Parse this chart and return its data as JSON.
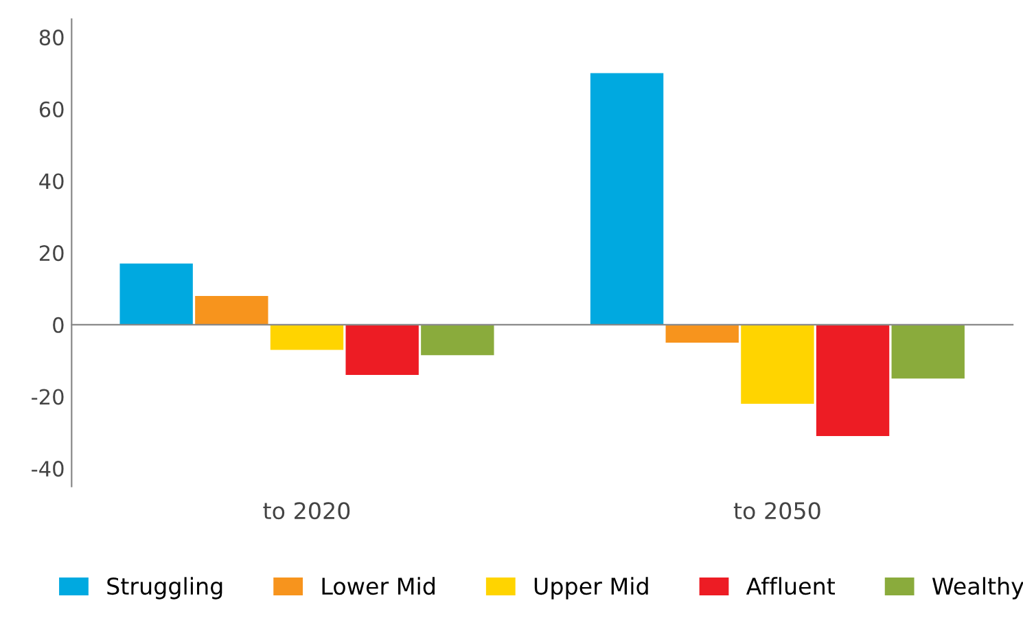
{
  "chart_data": {
    "type": "bar",
    "categories": [
      "to 2020",
      "to 2050"
    ],
    "series": [
      {
        "name": "Struggling",
        "color": "#00a9e0",
        "values": [
          17,
          70
        ]
      },
      {
        "name": "Lower Mid",
        "color": "#f7941d",
        "values": [
          8,
          -5
        ]
      },
      {
        "name": "Upper Mid",
        "color": "#ffd400",
        "values": [
          -7,
          -22
        ]
      },
      {
        "name": "Affluent",
        "color": "#ed1c24",
        "values": [
          -14,
          -31
        ]
      },
      {
        "name": "Wealthy",
        "color": "#8aab3c",
        "values": [
          -8.5,
          -15
        ]
      }
    ],
    "ylim": [
      -45,
      85
    ],
    "yticks": [
      -40,
      -20,
      0,
      20,
      40,
      60,
      80
    ],
    "legend": "bottom"
  }
}
